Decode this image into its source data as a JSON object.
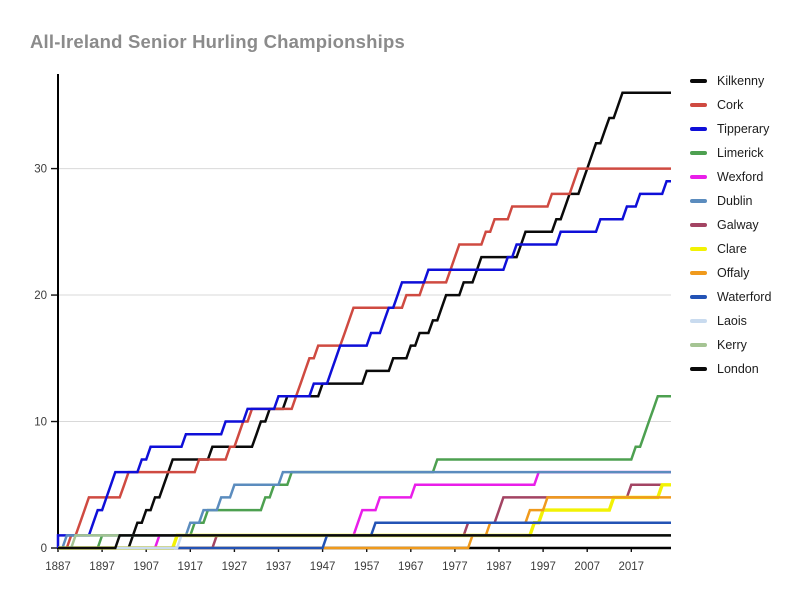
{
  "title": "All-Ireland Senior Hurling Championships",
  "chart_data": {
    "type": "line",
    "variant": "cumulative-step",
    "title": "All-Ireland Senior Hurling Championships",
    "xlabel": "",
    "ylabel": "",
    "grid": "horizontal-light",
    "legend_position": "right",
    "x_axis": {
      "min": 1887,
      "max": 2026,
      "tick_values": [
        1887,
        1897,
        1907,
        1917,
        1927,
        1937,
        1947,
        1957,
        1967,
        1977,
        1987,
        1997,
        2007,
        2017
      ],
      "tick_labels": [
        "1887",
        "1897",
        "1907",
        "1917",
        "1927",
        "1937",
        "1947",
        "1957",
        "1967",
        "1977",
        "1987",
        "1997",
        "2007",
        "2017"
      ]
    },
    "y_axis": {
      "min": 0,
      "max": 37.4,
      "tick_values": [
        0,
        10,
        20,
        30
      ],
      "tick_labels": [
        "0",
        "10",
        "20",
        "30"
      ]
    },
    "series": [
      {
        "name": "Kilkenny",
        "color": "#0a0a0a",
        "total_titles": 36,
        "win_years": [
          1904,
          1905,
          1907,
          1909,
          1911,
          1912,
          1913,
          1922,
          1932,
          1933,
          1935,
          1939,
          1947,
          1957,
          1963,
          1967,
          1969,
          1972,
          1974,
          1975,
          1979,
          1982,
          1983,
          1992,
          1993,
          2000,
          2002,
          2003,
          2006,
          2007,
          2008,
          2009,
          2011,
          2012,
          2014,
          2015
        ]
      },
      {
        "name": "Cork",
        "color": "#cf4a41",
        "total_titles": 30,
        "win_years": [
          1890,
          1892,
          1893,
          1894,
          1902,
          1903,
          1919,
          1926,
          1928,
          1929,
          1931,
          1941,
          1942,
          1943,
          1944,
          1946,
          1952,
          1953,
          1954,
          1966,
          1970,
          1976,
          1977,
          1978,
          1984,
          1986,
          1990,
          1999,
          2004,
          2005
        ]
      },
      {
        "name": "Tipperary",
        "color": "#0f0fd8",
        "total_titles": 29,
        "win_years": [
          1887,
          1895,
          1896,
          1898,
          1899,
          1900,
          1906,
          1908,
          1916,
          1925,
          1930,
          1937,
          1945,
          1949,
          1950,
          1951,
          1958,
          1961,
          1962,
          1964,
          1965,
          1971,
          1989,
          1991,
          2001,
          2010,
          2016,
          2019,
          2025
        ]
      },
      {
        "name": "Limerick",
        "color": "#4da050",
        "total_titles": 12,
        "win_years": [
          1897,
          1918,
          1921,
          1934,
          1936,
          1940,
          1973,
          2018,
          2020,
          2021,
          2022,
          2023
        ]
      },
      {
        "name": "Wexford",
        "color": "#e91ee9",
        "total_titles": 6,
        "win_years": [
          1910,
          1955,
          1956,
          1960,
          1968,
          1996
        ]
      },
      {
        "name": "Dublin",
        "color": "#5b8cbe",
        "total_titles": 6,
        "win_years": [
          1889,
          1917,
          1920,
          1924,
          1927,
          1938
        ]
      },
      {
        "name": "Galway",
        "color": "#a34463",
        "total_titles": 5,
        "win_years": [
          1923,
          1980,
          1987,
          1988,
          2017
        ]
      },
      {
        "name": "Clare",
        "color": "#f2f204",
        "total_titles": 5,
        "win_years": [
          1914,
          1995,
          1997,
          2013,
          2024
        ]
      },
      {
        "name": "Offaly",
        "color": "#f09a1c",
        "total_titles": 4,
        "win_years": [
          1981,
          1985,
          1994,
          1998
        ]
      },
      {
        "name": "Waterford",
        "color": "#2353b5",
        "total_titles": 2,
        "win_years": [
          1948,
          1959
        ]
      },
      {
        "name": "Laois",
        "color": "#c9dbef",
        "total_titles": 1,
        "win_years": [
          1915
        ]
      },
      {
        "name": "Kerry",
        "color": "#a5c493",
        "total_titles": 1,
        "win_years": [
          1891
        ]
      },
      {
        "name": "London",
        "color": "#0a0a0a",
        "total_titles": 1,
        "win_years": [
          1901
        ]
      }
    ]
  }
}
